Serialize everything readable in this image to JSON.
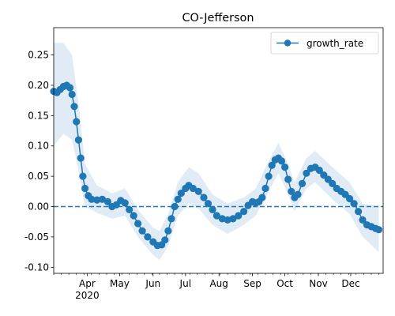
{
  "chart_data": {
    "type": "line",
    "title": "CO-Jefferson",
    "xlabel": "",
    "ylabel": "",
    "x_range": [
      "2020-03-01",
      "2020-12-31"
    ],
    "ylim": [
      -0.11,
      0.295
    ],
    "yticks": [
      -0.1,
      -0.05,
      0.0,
      0.05,
      0.1,
      0.15,
      0.2,
      0.25
    ],
    "xticks": [
      {
        "date": "2020-04-01",
        "label": "Apr",
        "sublabel": "2020"
      },
      {
        "date": "2020-05-01",
        "label": "May"
      },
      {
        "date": "2020-06-01",
        "label": "Jun"
      },
      {
        "date": "2020-07-01",
        "label": "Jul"
      },
      {
        "date": "2020-08-01",
        "label": "Aug"
      },
      {
        "date": "2020-09-01",
        "label": "Sep"
      },
      {
        "date": "2020-10-01",
        "label": "Oct"
      },
      {
        "date": "2020-11-01",
        "label": "Nov"
      },
      {
        "date": "2020-12-01",
        "label": "Dec"
      }
    ],
    "grid": false,
    "legend": {
      "position": "upper right",
      "entries": [
        "growth_rate"
      ]
    },
    "reference_line": {
      "y": 0.0,
      "style": "dashed"
    },
    "colors": {
      "series": "#1f77b4",
      "band": "#c6dbef"
    },
    "series": [
      {
        "name": "growth_rate",
        "marker": "circle",
        "points": [
          [
            "2020-03-01",
            0.19
          ],
          [
            "2020-03-04",
            0.188
          ],
          [
            "2020-03-07",
            0.193
          ],
          [
            "2020-03-10",
            0.198
          ],
          [
            "2020-03-13",
            0.2
          ],
          [
            "2020-03-16",
            0.196
          ],
          [
            "2020-03-18",
            0.185
          ],
          [
            "2020-03-20",
            0.165
          ],
          [
            "2020-03-22",
            0.14
          ],
          [
            "2020-03-24",
            0.11
          ],
          [
            "2020-03-26",
            0.08
          ],
          [
            "2020-03-28",
            0.05
          ],
          [
            "2020-03-30",
            0.03
          ],
          [
            "2020-04-02",
            0.018
          ],
          [
            "2020-04-05",
            0.012
          ],
          [
            "2020-04-10",
            0.011
          ],
          [
            "2020-04-15",
            0.012
          ],
          [
            "2020-04-20",
            0.008
          ],
          [
            "2020-04-24",
            0.0
          ],
          [
            "2020-04-28",
            0.003
          ],
          [
            "2020-05-02",
            0.01
          ],
          [
            "2020-05-06",
            0.006
          ],
          [
            "2020-05-10",
            -0.005
          ],
          [
            "2020-05-14",
            -0.015
          ],
          [
            "2020-05-18",
            -0.028
          ],
          [
            "2020-05-22",
            -0.04
          ],
          [
            "2020-05-27",
            -0.05
          ],
          [
            "2020-06-01",
            -0.058
          ],
          [
            "2020-06-05",
            -0.064
          ],
          [
            "2020-06-09",
            -0.063
          ],
          [
            "2020-06-12",
            -0.055
          ],
          [
            "2020-06-15",
            -0.04
          ],
          [
            "2020-06-18",
            -0.02
          ],
          [
            "2020-06-21",
            0.0
          ],
          [
            "2020-06-24",
            0.012
          ],
          [
            "2020-06-27",
            0.022
          ],
          [
            "2020-07-01",
            0.03
          ],
          [
            "2020-07-04",
            0.035
          ],
          [
            "2020-07-08",
            0.03
          ],
          [
            "2020-07-13",
            0.025
          ],
          [
            "2020-07-18",
            0.015
          ],
          [
            "2020-07-22",
            0.005
          ],
          [
            "2020-07-26",
            -0.005
          ],
          [
            "2020-07-30",
            -0.015
          ],
          [
            "2020-08-04",
            -0.02
          ],
          [
            "2020-08-09",
            -0.022
          ],
          [
            "2020-08-14",
            -0.02
          ],
          [
            "2020-08-19",
            -0.015
          ],
          [
            "2020-08-24",
            -0.008
          ],
          [
            "2020-08-28",
            0.002
          ],
          [
            "2020-09-01",
            0.008
          ],
          [
            "2020-09-04",
            0.006
          ],
          [
            "2020-09-07",
            0.008
          ],
          [
            "2020-09-10",
            0.015
          ],
          [
            "2020-09-13",
            0.03
          ],
          [
            "2020-09-16",
            0.05
          ],
          [
            "2020-09-19",
            0.068
          ],
          [
            "2020-09-22",
            0.077
          ],
          [
            "2020-09-25",
            0.08
          ],
          [
            "2020-09-28",
            0.075
          ],
          [
            "2020-10-01",
            0.065
          ],
          [
            "2020-10-04",
            0.045
          ],
          [
            "2020-10-07",
            0.025
          ],
          [
            "2020-10-10",
            0.015
          ],
          [
            "2020-10-13",
            0.02
          ],
          [
            "2020-10-17",
            0.038
          ],
          [
            "2020-10-21",
            0.055
          ],
          [
            "2020-10-25",
            0.063
          ],
          [
            "2020-10-29",
            0.065
          ],
          [
            "2020-11-02",
            0.06
          ],
          [
            "2020-11-06",
            0.052
          ],
          [
            "2020-11-10",
            0.045
          ],
          [
            "2020-11-14",
            0.038
          ],
          [
            "2020-11-18",
            0.03
          ],
          [
            "2020-11-22",
            0.025
          ],
          [
            "2020-11-26",
            0.02
          ],
          [
            "2020-11-30",
            0.013
          ],
          [
            "2020-12-04",
            0.005
          ],
          [
            "2020-12-08",
            -0.008
          ],
          [
            "2020-12-12",
            -0.022
          ],
          [
            "2020-12-16",
            -0.03
          ],
          [
            "2020-12-20",
            -0.033
          ],
          [
            "2020-12-24",
            -0.036
          ],
          [
            "2020-12-27",
            -0.038
          ]
        ],
        "band": [
          [
            "2020-03-01",
            0.1,
            0.27
          ],
          [
            "2020-03-10",
            0.12,
            0.27
          ],
          [
            "2020-03-18",
            0.11,
            0.25
          ],
          [
            "2020-03-24",
            0.06,
            0.17
          ],
          [
            "2020-03-30",
            0.0,
            0.07
          ],
          [
            "2020-04-10",
            -0.01,
            0.035
          ],
          [
            "2020-04-24",
            -0.02,
            0.022
          ],
          [
            "2020-05-06",
            -0.015,
            0.03
          ],
          [
            "2020-05-18",
            -0.05,
            -0.005
          ],
          [
            "2020-06-01",
            -0.08,
            -0.035
          ],
          [
            "2020-06-07",
            -0.088,
            -0.04
          ],
          [
            "2020-06-15",
            -0.065,
            -0.012
          ],
          [
            "2020-06-24",
            -0.015,
            0.04
          ],
          [
            "2020-07-04",
            0.005,
            0.065
          ],
          [
            "2020-07-13",
            -0.003,
            0.055
          ],
          [
            "2020-07-26",
            -0.03,
            0.02
          ],
          [
            "2020-08-09",
            -0.045,
            0.005
          ],
          [
            "2020-08-24",
            -0.03,
            0.015
          ],
          [
            "2020-09-04",
            -0.015,
            0.03
          ],
          [
            "2020-09-16",
            0.025,
            0.075
          ],
          [
            "2020-09-25",
            0.055,
            0.105
          ],
          [
            "2020-10-04",
            0.02,
            0.07
          ],
          [
            "2020-10-10",
            -0.008,
            0.04
          ],
          [
            "2020-10-21",
            0.03,
            0.08
          ],
          [
            "2020-10-29",
            0.04,
            0.092
          ],
          [
            "2020-11-14",
            0.012,
            0.065
          ],
          [
            "2020-11-30",
            -0.012,
            0.04
          ],
          [
            "2020-12-12",
            -0.05,
            0.005
          ],
          [
            "2020-12-27",
            -0.075,
            0.0
          ]
        ]
      }
    ]
  }
}
